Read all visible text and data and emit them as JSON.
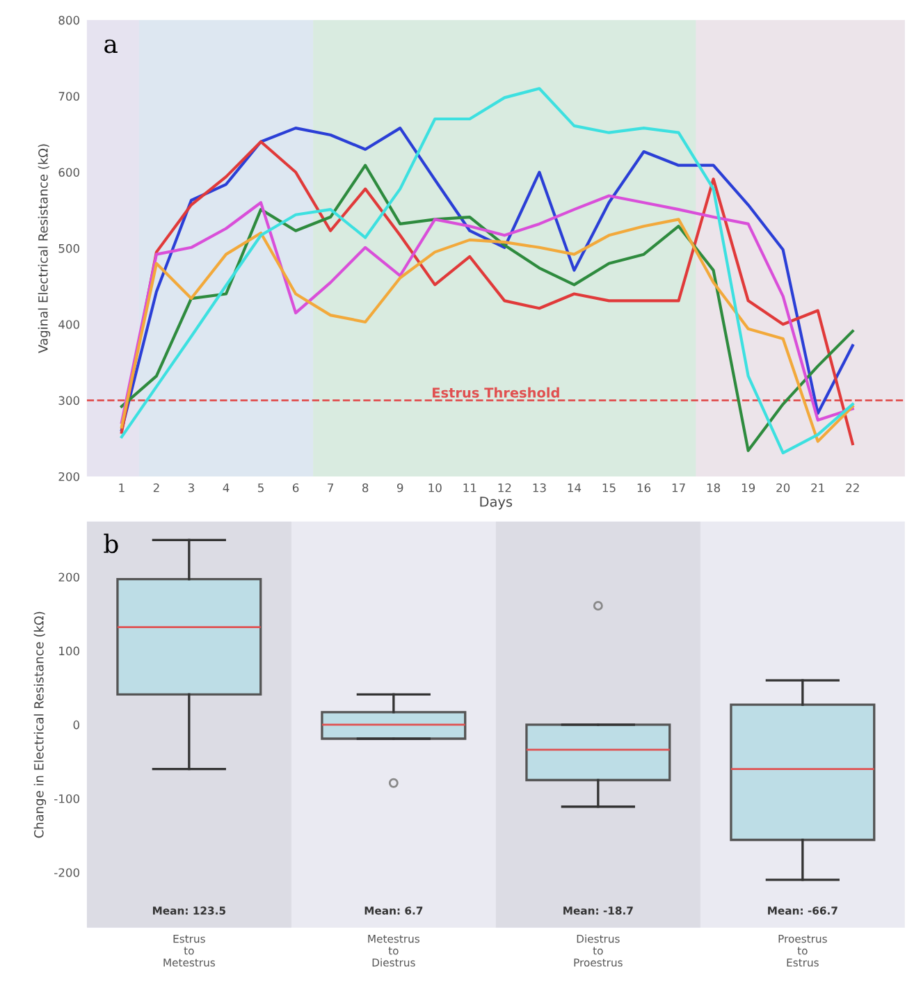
{
  "chart_data": [
    {
      "type": "line",
      "xlabel": "Days",
      "ylabel": "Vaginal Electrical Resistance (kΩ)",
      "annotations": [
        "a"
      ],
      "x": [
        1,
        2,
        3,
        4,
        5,
        6,
        7,
        8,
        9,
        10,
        11,
        12,
        13,
        14,
        15,
        16,
        17,
        18,
        19,
        20,
        21,
        22
      ],
      "xlim": [
        0,
        23.5
      ],
      "xticks": [
        1,
        2,
        3,
        4,
        5,
        6,
        7,
        8,
        9,
        10,
        11,
        12,
        13,
        14,
        15,
        16,
        17,
        18,
        19,
        20,
        21,
        22
      ],
      "ylim": [
        200,
        800
      ],
      "yticks": [
        200,
        300,
        400,
        500,
        600,
        700,
        800
      ],
      "grid": false,
      "ref_lines": [
        {
          "axis": "y",
          "value": 300,
          "label": "Estrus Threshold",
          "color": "#e05050",
          "line_style": "dashed"
        }
      ],
      "bands": [
        {
          "axis": "x",
          "from": 0,
          "to": 1.5,
          "color": "#e6e3f0"
        },
        {
          "axis": "x",
          "from": 1.5,
          "to": 6.5,
          "color": "#dde7f1"
        },
        {
          "axis": "x",
          "from": 6.5,
          "to": 17.5,
          "color": "#d9ebe0"
        },
        {
          "axis": "x",
          "from": 17.5,
          "to": 23.5,
          "color": "#ece4ea"
        }
      ],
      "series": [
        {
          "color": "#2b3fd6",
          "values": [
            261,
            443,
            563,
            584,
            640,
            658,
            649,
            630,
            658,
            590,
            523,
            501,
            600,
            471,
            560,
            627,
            609,
            609,
            557,
            498,
            283,
            372
          ]
        },
        {
          "color": "#e03a3a",
          "values": [
            258,
            495,
            557,
            594,
            640,
            600,
            523,
            578,
            517,
            452,
            489,
            431,
            421,
            440,
            431,
            431,
            431,
            591,
            431,
            400,
            418,
            243
          ]
        },
        {
          "color": "#2e8b3e",
          "values": [
            292,
            332,
            434,
            440,
            551,
            523,
            541,
            609,
            532,
            538,
            541,
            504,
            474,
            452,
            480,
            492,
            529,
            471,
            234,
            295,
            345,
            391
          ]
        },
        {
          "color": "#d94fd9",
          "values": [
            271,
            492,
            501,
            526,
            560,
            415,
            455,
            501,
            464,
            538,
            529,
            517,
            532,
            551,
            569,
            560,
            551,
            541,
            532,
            437,
            274,
            289
          ]
        },
        {
          "color": "#f2a93b",
          "values": [
            265,
            480,
            434,
            492,
            520,
            440,
            412,
            403,
            461,
            495,
            511,
            508,
            501,
            492,
            517,
            529,
            538,
            455,
            394,
            381,
            246,
            292
          ]
        },
        {
          "color": "#3de0e0",
          "values": [
            252,
            318,
            384,
            451,
            517,
            544,
            551,
            514,
            578,
            670,
            670,
            698,
            710,
            661,
            652,
            658,
            652,
            578,
            332,
            231,
            255,
            295
          ]
        }
      ]
    },
    {
      "type": "box",
      "ylabel": "Change in Electrical Resistance (kΩ)",
      "categories": [
        "Estrus\nto\nMetestrus",
        "Metestrus\nto\nDiestrus",
        "Diestrus\nto\nProestrus",
        "Proestrus\nto\nEstrus"
      ],
      "ylim": [
        -275,
        275
      ],
      "yticks": [
        -200,
        -100,
        0,
        100,
        200
      ],
      "grid": false,
      "annotations": [
        "b",
        "Mean: 123.5",
        "Mean: 6.7",
        "Mean: -18.7",
        "Mean: -66.7"
      ],
      "boxes": [
        {
          "low": -60,
          "q1": 41,
          "median": 132,
          "q3": 197,
          "high": 250
        },
        {
          "low": -19,
          "q1": -19,
          "median": 0,
          "q3": 17,
          "high": 41,
          "outliers": [
            -79
          ]
        },
        {
          "low": -111,
          "q1": -75,
          "median": -34,
          "q3": 0,
          "high": 0,
          "outliers": [
            161
          ]
        },
        {
          "low": -210,
          "q1": -156,
          "median": -60,
          "q3": 27,
          "high": 60
        }
      ]
    }
  ]
}
